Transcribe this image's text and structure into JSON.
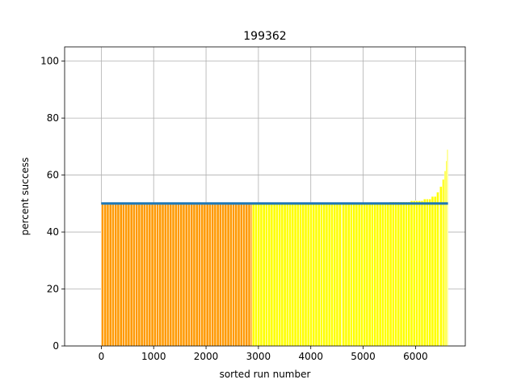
{
  "chart_data": {
    "type": "bar",
    "title": "199362",
    "xlabel": "sorted run number",
    "ylabel": "percent success",
    "xlim": [
      -700,
      6950
    ],
    "ylim": [
      0,
      105
    ],
    "xticks": [
      0,
      1000,
      2000,
      3000,
      4000,
      5000,
      6000
    ],
    "yticks": [
      0,
      20,
      40,
      60,
      80,
      100
    ],
    "grid": true,
    "reference_line": {
      "value": 50,
      "color": "#1f77b4"
    },
    "colors": {
      "below_threshold": "#ff9900",
      "above_threshold": "#ffff00",
      "edge": "#ffffff"
    },
    "series": [
      {
        "color": "#ff9900",
        "segments": [
          {
            "x_start": 0,
            "x_end": 2880,
            "value": 49.7
          }
        ]
      },
      {
        "color": "#ffff00",
        "segments": [
          {
            "x_start": 2880,
            "x_end": 4600,
            "value": 49.8
          },
          {
            "x_start": 4600,
            "x_end": 5000,
            "value": 50.0
          },
          {
            "x_start": 5000,
            "x_end": 5500,
            "value": 50.3
          },
          {
            "x_start": 5500,
            "x_end": 5900,
            "value": 50.6
          },
          {
            "x_start": 5900,
            "x_end": 6150,
            "value": 51.0
          },
          {
            "x_start": 6150,
            "x_end": 6300,
            "value": 51.6
          },
          {
            "x_start": 6300,
            "x_end": 6400,
            "value": 52.5
          },
          {
            "x_start": 6400,
            "x_end": 6460,
            "value": 54.0
          },
          {
            "x_start": 6460,
            "x_end": 6510,
            "value": 56.0
          },
          {
            "x_start": 6510,
            "x_end": 6550,
            "value": 58.5
          },
          {
            "x_start": 6550,
            "x_end": 6580,
            "value": 61.5
          },
          {
            "x_start": 6580,
            "x_end": 6600,
            "value": 65.0
          },
          {
            "x_start": 6600,
            "x_end": 6620,
            "value": 69.0
          }
        ]
      }
    ]
  }
}
